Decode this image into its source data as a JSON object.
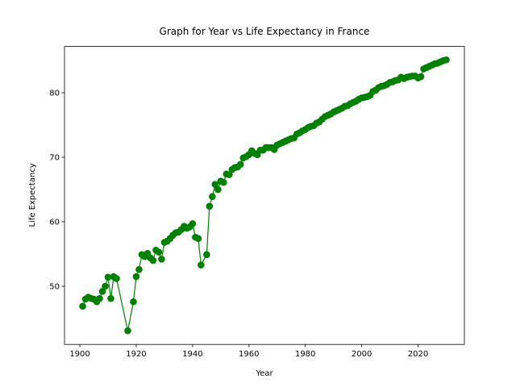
{
  "chart_data": {
    "type": "line",
    "title": "Graph for Year vs Life Expectancy in France",
    "xlabel": "Year",
    "ylabel": "Life Expectancy",
    "color": "#008000",
    "markers": true,
    "x": [
      1901,
      1902,
      1903,
      1904,
      1905,
      1906,
      1907,
      1908,
      1909,
      1910,
      1911,
      1912,
      1913,
      1917,
      1919,
      1920,
      1921,
      1922,
      1923,
      1924,
      1925,
      1926,
      1927,
      1928,
      1929,
      1930,
      1931,
      1932,
      1933,
      1934,
      1935,
      1936,
      1937,
      1938,
      1939,
      1940,
      1941,
      1942,
      1943,
      1945,
      1946,
      1947,
      1948,
      1949,
      1950,
      1951,
      1952,
      1953,
      1954,
      1955,
      1956,
      1957,
      1958,
      1959,
      1960,
      1961,
      1962,
      1963,
      1964,
      1965,
      1966,
      1967,
      1968,
      1969,
      1970,
      1971,
      1972,
      1973,
      1974,
      1975,
      1976,
      1977,
      1978,
      1979,
      1980,
      1981,
      1982,
      1983,
      1984,
      1985,
      1986,
      1987,
      1988,
      1989,
      1990,
      1991,
      1992,
      1993,
      1994,
      1995,
      1996,
      1997,
      1998,
      1999,
      2000,
      2001,
      2002,
      2003,
      2004,
      2005,
      2006,
      2007,
      2008,
      2009,
      2010,
      2011,
      2012,
      2013,
      2014,
      2015,
      2016,
      2017,
      2018,
      2019,
      2020,
      2021,
      2022,
      2023,
      2024,
      2025,
      2026,
      2027,
      2028,
      2029,
      2030
    ],
    "values": [
      46.9,
      48.0,
      48.3,
      48.1,
      48.0,
      47.6,
      48.1,
      49.2,
      50.0,
      51.4,
      48.1,
      51.5,
      51.2,
      43.1,
      47.6,
      51.5,
      52.6,
      54.9,
      54.6,
      55.1,
      54.4,
      54.0,
      55.6,
      55.3,
      54.2,
      56.8,
      57.0,
      57.4,
      57.9,
      58.3,
      58.4,
      58.8,
      59.3,
      59.0,
      59.2,
      59.7,
      57.6,
      57.4,
      53.3,
      54.9,
      62.4,
      63.9,
      65.8,
      65.0,
      66.3,
      66.1,
      67.4,
      67.3,
      68.1,
      68.4,
      68.5,
      68.9,
      69.9,
      70.1,
      70.4,
      71.0,
      70.6,
      70.4,
      71.1,
      71.1,
      71.5,
      71.5,
      71.5,
      71.2,
      71.9,
      72.1,
      72.3,
      72.5,
      72.7,
      72.9,
      73.0,
      73.6,
      73.8,
      74.1,
      74.3,
      74.6,
      74.8,
      74.9,
      75.3,
      75.5,
      75.9,
      76.3,
      76.5,
      76.7,
      77.0,
      77.2,
      77.4,
      77.6,
      77.9,
      78.0,
      78.3,
      78.5,
      78.7,
      79.0,
      79.2,
      79.3,
      79.4,
      79.6,
      80.2,
      80.4,
      80.8,
      81.0,
      81.1,
      81.3,
      81.6,
      81.7,
      81.9,
      82.0,
      82.4,
      82.2,
      82.4,
      82.5,
      82.6,
      82.6,
      82.3,
      82.5,
      83.7,
      83.9,
      84.1,
      84.3,
      84.5,
      84.6,
      84.8,
      85.0,
      85.1
    ],
    "xlim": [
      1894.55,
      2036.45
    ],
    "ylim": [
      40.98,
      87.18
    ],
    "xticks": [
      1900,
      1920,
      1940,
      1960,
      1980,
      2000,
      2020
    ],
    "yticks": [
      50,
      60,
      70,
      80
    ]
  }
}
